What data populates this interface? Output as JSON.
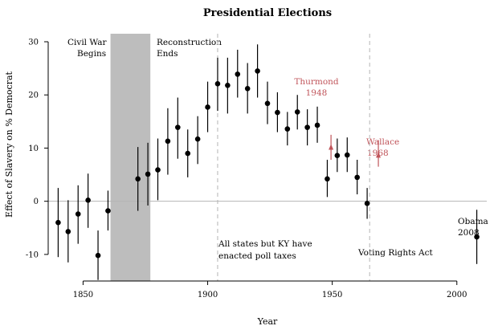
{
  "chart_data": {
    "type": "scatter",
    "title": "Presidential Elections",
    "xlabel": "Year",
    "ylabel": "Effect of Slavery on % Democrat",
    "xlim": [
      1836,
      2012
    ],
    "ylim": [
      -15,
      30
    ],
    "xticks": [
      1850,
      1900,
      1950,
      2000
    ],
    "yticks": [
      -10,
      0,
      10,
      20,
      30
    ],
    "reference_line_y": 0,
    "shaded_region": {
      "x_start": 1861,
      "x_end": 1877,
      "color": "#bdbdbd"
    },
    "vertical_lines": [
      1904,
      1965
    ],
    "points": [
      {
        "year": 1840,
        "value": -4.0,
        "lo": -10.5,
        "hi": 2.5
      },
      {
        "year": 1844,
        "value": -5.7,
        "lo": -11.5,
        "hi": 0.2
      },
      {
        "year": 1848,
        "value": -2.4,
        "lo": -8.0,
        "hi": 3.0
      },
      {
        "year": 1852,
        "value": 0.2,
        "lo": -5.0,
        "hi": 5.2
      },
      {
        "year": 1856,
        "value": -10.2,
        "lo": -14.8,
        "hi": -5.5
      },
      {
        "year": 1860,
        "value": -1.8,
        "lo": -5.5,
        "hi": 2.0
      },
      {
        "year": 1872,
        "value": 4.2,
        "lo": -1.8,
        "hi": 10.2
      },
      {
        "year": 1876,
        "value": 5.1,
        "lo": -0.8,
        "hi": 11.0
      },
      {
        "year": 1880,
        "value": 5.9,
        "lo": 0.2,
        "hi": 11.8
      },
      {
        "year": 1884,
        "value": 11.3,
        "lo": 5.0,
        "hi": 17.5
      },
      {
        "year": 1888,
        "value": 13.9,
        "lo": 8.0,
        "hi": 19.5
      },
      {
        "year": 1892,
        "value": 9.0,
        "lo": 4.5,
        "hi": 13.5
      },
      {
        "year": 1896,
        "value": 11.7,
        "lo": 7.0,
        "hi": 16.0
      },
      {
        "year": 1900,
        "value": 17.7,
        "lo": 13.0,
        "hi": 22.5
      },
      {
        "year": 1904,
        "value": 22.1,
        "lo": 17.0,
        "hi": 27.0
      },
      {
        "year": 1908,
        "value": 21.8,
        "lo": 16.5,
        "hi": 27.0
      },
      {
        "year": 1912,
        "value": 23.9,
        "lo": 19.5,
        "hi": 28.5
      },
      {
        "year": 1916,
        "value": 21.2,
        "lo": 16.5,
        "hi": 26.0
      },
      {
        "year": 1920,
        "value": 24.5,
        "lo": 19.5,
        "hi": 29.5
      },
      {
        "year": 1924,
        "value": 18.4,
        "lo": 14.5,
        "hi": 22.5
      },
      {
        "year": 1928,
        "value": 16.7,
        "lo": 13.0,
        "hi": 20.5
      },
      {
        "year": 1932,
        "value": 13.6,
        "lo": 10.5,
        "hi": 16.8
      },
      {
        "year": 1936,
        "value": 16.8,
        "lo": 13.5,
        "hi": 20.0
      },
      {
        "year": 1940,
        "value": 13.9,
        "lo": 10.5,
        "hi": 17.3
      },
      {
        "year": 1944,
        "value": 14.3,
        "lo": 11.0,
        "hi": 17.8
      },
      {
        "year": 1948,
        "value": 4.2,
        "lo": 0.8,
        "hi": 7.8
      },
      {
        "year": 1952,
        "value": 8.6,
        "lo": 5.5,
        "hi": 11.8
      },
      {
        "year": 1956,
        "value": 8.7,
        "lo": 5.5,
        "hi": 12.0
      },
      {
        "year": 1960,
        "value": 4.5,
        "lo": 1.3,
        "hi": 7.8
      },
      {
        "year": 1964,
        "value": -0.4,
        "lo": -3.3,
        "hi": 2.5
      },
      {
        "year": 2008,
        "value": -6.7,
        "lo": -11.8,
        "hi": -1.6
      }
    ],
    "special_points": [
      {
        "label": "Thurmond 1948",
        "year": 1949.5,
        "value": 10.0,
        "lo": 7.8,
        "hi": 12.5,
        "color": "#c0545a"
      },
      {
        "label": "Wallace 1968",
        "year": 1968.5,
        "value": 8.5,
        "lo": 6.5,
        "hi": 11.5,
        "color": "#c0545a"
      }
    ],
    "annotations": {
      "civil_war_line1": "Civil War",
      "civil_war_line2": "Begins",
      "reconstruction_line1": "Reconstruction",
      "reconstruction_line2": "Ends",
      "poll_tax_line1": "All states but KY have",
      "poll_tax_line2": "enacted poll taxes",
      "voting_rights": "Voting Rights Act",
      "thurmond_line1": "Thurmond",
      "thurmond_line2": "1948",
      "wallace_line1": "Wallace",
      "wallace_line2": "1968",
      "obama_line1": "Obama",
      "obama_line2": "2008"
    }
  }
}
